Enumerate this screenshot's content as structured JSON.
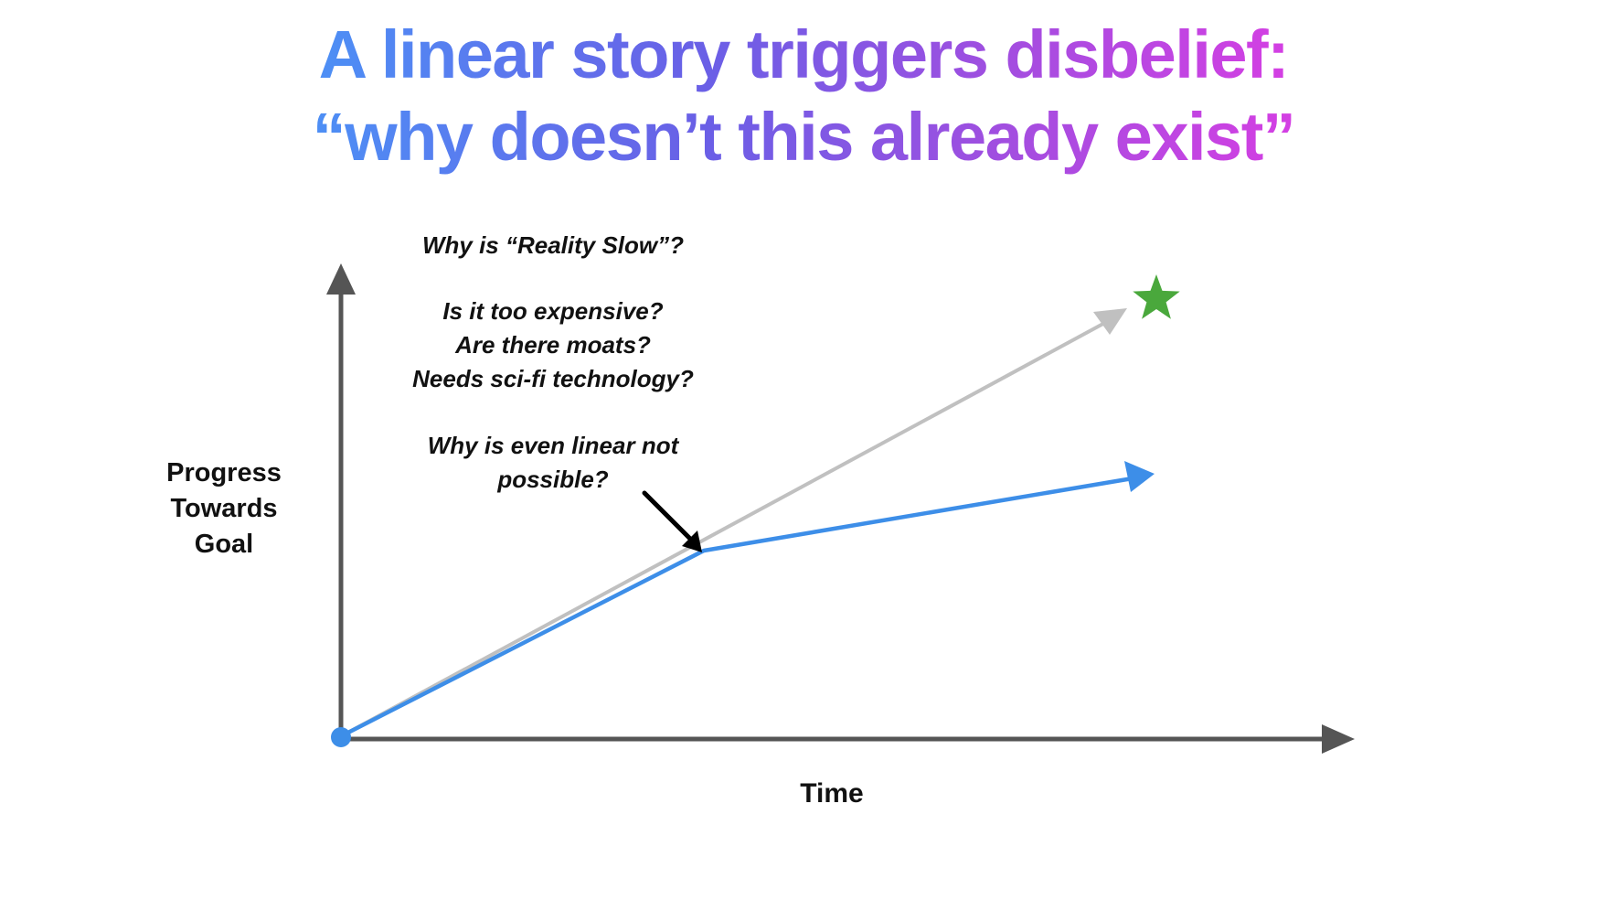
{
  "title": {
    "line1": "A linear story triggers disbelief:",
    "line2": "“why doesn’t this already exist”"
  },
  "questions": [
    "Why is “Reality Slow”?",
    "Is it too expensive?",
    "Are there moats?",
    "Needs sci-fi technology?",
    "Why is even linear not",
    "possible?"
  ],
  "axes": {
    "y_label_lines": [
      "Progress",
      "Towards",
      "Goal"
    ],
    "x_label": "Time"
  },
  "colors": {
    "axis": "#555555",
    "expected_line": "#c0c0c0",
    "actual_line": "#3d8ee8",
    "origin_dot": "#3d8ee8",
    "star": "#4aa83c",
    "pointer_arrow": "#000000",
    "title_gradient": [
      "#4d8ff5",
      "#6a5fe6",
      "#a14ee0",
      "#d43fe3"
    ]
  },
  "icons": {
    "goal": "star-icon",
    "pointer": "arrow-icon"
  }
}
